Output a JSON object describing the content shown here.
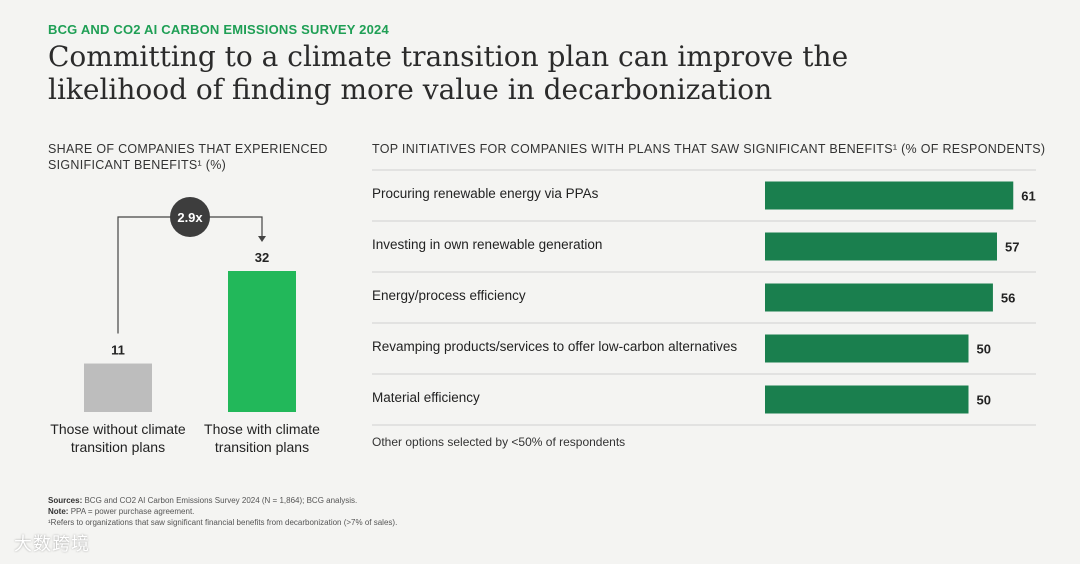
{
  "header": {
    "kicker": "BCG AND CO2 AI CARBON EMISSIONS SURVEY 2024",
    "title": "Committing to a climate transition plan can improve the likelihood of finding more value in decarbonization"
  },
  "colors": {
    "kicker": "#1f9f55",
    "left_bar_without": "#bdbdbd",
    "left_bar_with": "#22b85a",
    "right_bars": "#1a7f4e",
    "multiplier_badge": "#3d3d3d",
    "divider": "#d0d0d0"
  },
  "chart_data": [
    {
      "type": "bar",
      "title": "SHARE OF COMPANIES THAT EXPERIENCED SIGNIFICANT BENEFITS¹ (%)",
      "categories": [
        "Those without climate transition plans",
        "Those with climate transition plans"
      ],
      "values": [
        11,
        32
      ],
      "annotation": "2.9x",
      "ylim": [
        0,
        32
      ]
    },
    {
      "type": "bar",
      "orientation": "horizontal",
      "title": "TOP INITIATIVES FOR COMPANIES WITH PLANS THAT SAW SIGNIFICANT BENEFITS¹ (% OF RESPONDENTS)",
      "categories": [
        "Procuring renewable energy via PPAs",
        "Investing in own renewable generation",
        "Energy/process efficiency",
        "Revamping products/services to offer low-carbon alternatives",
        "Material efficiency"
      ],
      "values": [
        61,
        57,
        56,
        50,
        50
      ],
      "note": "Other options selected by <50% of respondents"
    }
  ],
  "footer": {
    "sources_label": "Sources:",
    "sources": "BCG and CO2 AI Carbon Emissions Survey 2024 (N = 1,864); BCG analysis.",
    "note_label": "Note:",
    "note": "PPA = power purchase agreement.",
    "footnote": "¹Refers to organizations that saw significant financial benefits from decarbonization (>7% of sales)."
  },
  "watermark": "大数跨境"
}
